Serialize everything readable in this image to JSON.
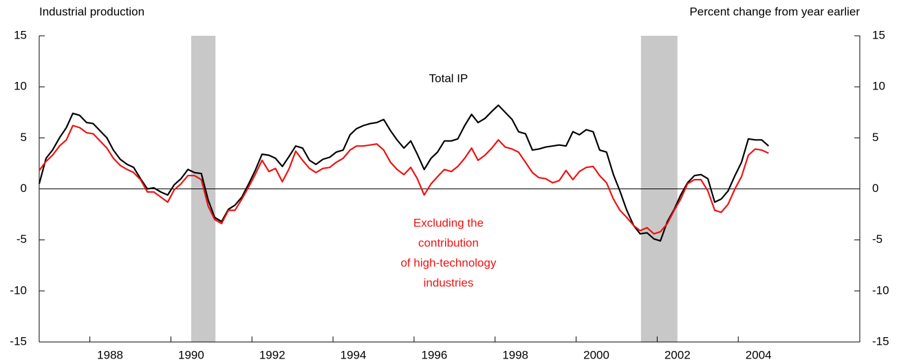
{
  "chart_data": {
    "type": "line",
    "y_axis_label": "Industrial production",
    "y2_axis_label": "Percent change from year earlier",
    "annotations": [
      {
        "lines": [
          "Total IP"
        ],
        "series": 0
      },
      {
        "lines": [
          "Excluding the",
          "contribution",
          "of high-technology",
          "industries"
        ],
        "series": 1
      }
    ],
    "x": [
      1986.75,
      1986.92,
      1987.08,
      1987.25,
      1987.42,
      1987.58,
      1987.75,
      1987.92,
      1988.08,
      1988.25,
      1988.42,
      1988.58,
      1988.75,
      1988.92,
      1989.08,
      1989.25,
      1989.42,
      1989.58,
      1989.75,
      1989.92,
      1990.08,
      1990.25,
      1990.42,
      1990.58,
      1990.75,
      1990.92,
      1991.08,
      1991.25,
      1991.42,
      1991.58,
      1991.75,
      1991.92,
      1992.08,
      1992.25,
      1992.42,
      1992.58,
      1992.75,
      1992.92,
      1993.08,
      1993.25,
      1993.42,
      1993.58,
      1993.75,
      1993.92,
      1994.08,
      1994.25,
      1994.42,
      1994.58,
      1994.75,
      1994.92,
      1995.08,
      1995.25,
      1995.42,
      1995.58,
      1995.75,
      1995.92,
      1996.08,
      1996.25,
      1996.42,
      1996.58,
      1996.75,
      1996.92,
      1997.08,
      1997.25,
      1997.42,
      1997.58,
      1997.75,
      1997.92,
      1998.08,
      1998.25,
      1998.42,
      1998.58,
      1998.75,
      1998.92,
      1999.08,
      1999.25,
      1999.42,
      1999.58,
      1999.75,
      1999.92,
      2000.08,
      2000.25,
      2000.42,
      2000.58,
      2000.75,
      2000.92,
      2001.08,
      2001.25,
      2001.42,
      2001.58,
      2001.75,
      2001.92,
      2002.08,
      2002.25,
      2002.42,
      2002.58,
      2002.75,
      2002.92,
      2003.08,
      2003.25,
      2003.42,
      2003.58,
      2003.75,
      2003.92,
      2004.08,
      2004.25,
      2004.42,
      2004.58,
      2004.75
    ],
    "series": [
      {
        "name": "Total IP",
        "color": "#000000",
        "values": [
          0.5,
          3.0,
          3.8,
          5.0,
          6.0,
          7.4,
          7.2,
          6.5,
          6.4,
          5.7,
          5.0,
          3.8,
          2.9,
          2.4,
          2.1,
          1.0,
          0.0,
          0.1,
          -0.3,
          -0.6,
          0.4,
          1.0,
          1.9,
          1.6,
          1.5,
          -1.1,
          -2.8,
          -3.2,
          -2.0,
          -1.6,
          -0.8,
          0.5,
          1.8,
          3.4,
          3.3,
          3.0,
          2.2,
          3.2,
          4.2,
          4.0,
          2.8,
          2.4,
          2.9,
          3.1,
          3.6,
          3.8,
          5.3,
          5.9,
          6.2,
          6.4,
          6.5,
          6.8,
          5.7,
          4.8,
          4.0,
          4.7,
          3.4,
          1.9,
          3.0,
          3.6,
          4.7,
          4.7,
          4.9,
          6.2,
          7.3,
          6.5,
          6.9,
          7.6,
          8.2,
          7.5,
          6.8,
          5.6,
          5.4,
          3.8,
          3.9,
          4.1,
          4.2,
          4.3,
          4.2,
          5.6,
          5.3,
          5.8,
          5.6,
          3.8,
          3.6,
          1.4,
          -0.2,
          -2.1,
          -3.6,
          -4.4,
          -4.3,
          -4.9,
          -5.1,
          -3.2,
          -2.0,
          -0.6,
          0.6,
          1.3,
          1.4,
          1.0,
          -1.3,
          -1.0,
          -0.2,
          1.3,
          2.6,
          4.9,
          4.8,
          4.8,
          4.2
        ]
      },
      {
        "name": "Excluding the contribution of high-technology industries",
        "color": "#ee1111",
        "values": [
          1.8,
          2.7,
          3.3,
          4.2,
          4.8,
          6.2,
          6.0,
          5.5,
          5.4,
          4.7,
          4.0,
          3.0,
          2.3,
          1.9,
          1.6,
          0.9,
          -0.3,
          -0.3,
          -0.8,
          -1.3,
          -0.1,
          0.5,
          1.3,
          1.3,
          0.9,
          -1.7,
          -3.0,
          -3.4,
          -2.1,
          -2.1,
          -1.0,
          0.2,
          1.4,
          2.8,
          1.7,
          2.0,
          0.7,
          2.0,
          3.7,
          2.8,
          2.0,
          1.6,
          2.0,
          2.1,
          2.6,
          3.0,
          3.8,
          4.2,
          4.2,
          4.3,
          4.4,
          3.8,
          2.6,
          1.9,
          1.4,
          2.1,
          1.0,
          -0.6,
          0.5,
          1.2,
          1.9,
          1.7,
          2.2,
          3.0,
          4.0,
          2.8,
          3.3,
          4.0,
          4.8,
          4.1,
          3.9,
          3.6,
          2.6,
          1.6,
          1.1,
          1.0,
          0.6,
          0.8,
          1.8,
          0.9,
          1.7,
          2.1,
          2.2,
          1.3,
          0.6,
          -1.0,
          -2.1,
          -2.8,
          -3.6,
          -4.1,
          -3.8,
          -4.4,
          -4.2,
          -3.4,
          -2.1,
          -1.0,
          0.5,
          0.9,
          0.9,
          -0.2,
          -2.1,
          -2.3,
          -1.5,
          0.0,
          1.2,
          3.3,
          3.9,
          3.8,
          3.5
        ]
      }
    ],
    "shaded": [
      [
        1990.5,
        1991.1
      ],
      [
        2001.6,
        2002.5
      ]
    ],
    "shade_color": "#c8c8c8",
    "xlim": [
      1986.75,
      2007.0
    ],
    "xticks": [
      1988,
      1990,
      1992,
      1994,
      1996,
      1998,
      2000,
      2002,
      2004
    ],
    "ylim": [
      -15,
      15
    ],
    "yticks": [
      -15,
      -10,
      -5,
      0,
      5,
      10,
      15
    ],
    "y2lim": [
      -15,
      15
    ],
    "y2ticks": [
      -15,
      -10,
      -5,
      0,
      5,
      10,
      15
    ],
    "zero_line": true
  }
}
